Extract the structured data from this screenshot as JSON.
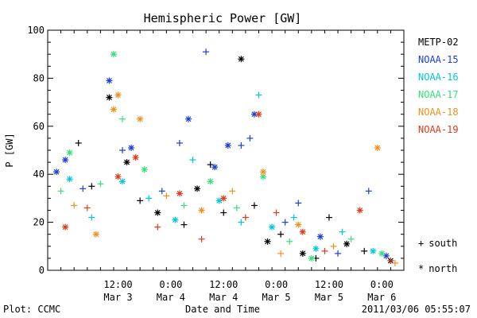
{
  "chart_data": {
    "type": "scatter",
    "title": "Hemispheric Power [GW]",
    "xlabel": "Date and Time",
    "ylabel": "P [GW]",
    "ylim": [
      0,
      100
    ],
    "xlim": [
      "2011-03-02T20:00",
      "2011-03-06T05:00"
    ],
    "yticks": [
      0,
      20,
      40,
      60,
      80,
      100
    ],
    "xticks": [
      {
        "t": "2011-03-03T12:00",
        "time": "12:00",
        "date": "Mar 3"
      },
      {
        "t": "2011-03-04T00:00",
        "time": "0:00",
        "date": "Mar 4"
      },
      {
        "t": "2011-03-04T12:00",
        "time": "12:00",
        "date": "Mar 4"
      },
      {
        "t": "2011-03-05T00:00",
        "time": "0:00",
        "date": "Mar 5"
      },
      {
        "t": "2011-03-05T12:00",
        "time": "12:00",
        "date": "Mar 5"
      },
      {
        "t": "2011-03-06T00:00",
        "time": "0:00",
        "date": "Mar 6"
      }
    ],
    "grid": false,
    "legend_position": "right",
    "marker_legend": [
      {
        "symbol": "+",
        "label": "south"
      },
      {
        "symbol": "*",
        "label": "north"
      }
    ],
    "series": [
      {
        "name": "METP-02",
        "color": "#000000",
        "points": [
          [
            "2011-03-03T03:00",
            53,
            "+"
          ],
          [
            "2011-03-03T06:00",
            35,
            "+"
          ],
          [
            "2011-03-03T10:00",
            72,
            "*"
          ],
          [
            "2011-03-03T14:00",
            45,
            "*"
          ],
          [
            "2011-03-03T17:00",
            29,
            "+"
          ],
          [
            "2011-03-03T21:00",
            24,
            "*"
          ],
          [
            "2011-03-04T03:00",
            19,
            "+"
          ],
          [
            "2011-03-04T06:00",
            34,
            "*"
          ],
          [
            "2011-03-04T09:00",
            44,
            "+"
          ],
          [
            "2011-03-04T12:00",
            24,
            "+"
          ],
          [
            "2011-03-04T16:00",
            88,
            "*"
          ],
          [
            "2011-03-04T19:00",
            27,
            "+"
          ],
          [
            "2011-03-04T22:00",
            12,
            "*"
          ],
          [
            "2011-03-05T01:00",
            15,
            "+"
          ],
          [
            "2011-03-05T06:00",
            7,
            "*"
          ],
          [
            "2011-03-05T09:00",
            5,
            "+"
          ],
          [
            "2011-03-05T12:00",
            22,
            "+"
          ],
          [
            "2011-03-05T16:00",
            11,
            "*"
          ],
          [
            "2011-03-05T20:00",
            8,
            "+"
          ],
          [
            "2011-03-06T02:00",
            4,
            "*"
          ]
        ]
      },
      {
        "name": "NOAA-15",
        "color": "#1c3fd6",
        "points": [
          [
            "2011-03-02T22:00",
            41,
            "*"
          ],
          [
            "2011-03-03T00:00",
            46,
            "*"
          ],
          [
            "2011-03-03T04:00",
            34,
            "+"
          ],
          [
            "2011-03-03T10:00",
            79,
            "*"
          ],
          [
            "2011-03-03T13:00",
            50,
            "+"
          ],
          [
            "2011-03-03T15:00",
            51,
            "*"
          ],
          [
            "2011-03-03T22:00",
            33,
            "+"
          ],
          [
            "2011-03-04T02:00",
            53,
            "+"
          ],
          [
            "2011-03-04T04:00",
            63,
            "*"
          ],
          [
            "2011-03-04T08:00",
            91,
            "+"
          ],
          [
            "2011-03-04T10:00",
            43,
            "*"
          ],
          [
            "2011-03-04T13:00",
            52,
            "*"
          ],
          [
            "2011-03-04T16:00",
            52,
            "+"
          ],
          [
            "2011-03-04T18:00",
            55,
            "+"
          ],
          [
            "2011-03-04T19:00",
            65,
            "*"
          ],
          [
            "2011-03-05T02:00",
            20,
            "+"
          ],
          [
            "2011-03-05T05:00",
            28,
            "+"
          ],
          [
            "2011-03-05T10:00",
            14,
            "*"
          ],
          [
            "2011-03-05T14:00",
            7,
            "+"
          ],
          [
            "2011-03-05T21:00",
            33,
            "+"
          ],
          [
            "2011-03-06T01:00",
            6,
            "*"
          ]
        ]
      },
      {
        "name": "NOAA-16",
        "color": "#00c8d8",
        "points": [
          [
            "2011-03-03T01:00",
            38,
            "*"
          ],
          [
            "2011-03-03T06:00",
            22,
            "+"
          ],
          [
            "2011-03-03T13:00",
            37,
            "*"
          ],
          [
            "2011-03-03T19:00",
            30,
            "+"
          ],
          [
            "2011-03-04T01:00",
            21,
            "*"
          ],
          [
            "2011-03-04T05:00",
            46,
            "+"
          ],
          [
            "2011-03-04T11:00",
            29,
            "*"
          ],
          [
            "2011-03-04T16:00",
            20,
            "+"
          ],
          [
            "2011-03-04T20:00",
            73,
            "+"
          ],
          [
            "2011-03-04T23:00",
            18,
            "*"
          ],
          [
            "2011-03-05T04:00",
            22,
            "+"
          ],
          [
            "2011-03-05T09:00",
            9,
            "*"
          ],
          [
            "2011-03-05T15:00",
            16,
            "+"
          ],
          [
            "2011-03-05T22:00",
            8,
            "*"
          ]
        ]
      },
      {
        "name": "NOAA-17",
        "color": "#35e07a",
        "points": [
          [
            "2011-03-02T23:00",
            33,
            "+"
          ],
          [
            "2011-03-03T01:00",
            49,
            "*"
          ],
          [
            "2011-03-03T08:00",
            36,
            "+"
          ],
          [
            "2011-03-03T11:00",
            90,
            "*"
          ],
          [
            "2011-03-03T13:00",
            63,
            "+"
          ],
          [
            "2011-03-03T18:00",
            42,
            "*"
          ],
          [
            "2011-03-04T03:00",
            27,
            "+"
          ],
          [
            "2011-03-04T09:00",
            37,
            "*"
          ],
          [
            "2011-03-04T15:00",
            26,
            "+"
          ],
          [
            "2011-03-04T21:00",
            39,
            "*"
          ],
          [
            "2011-03-05T03:00",
            12,
            "+"
          ],
          [
            "2011-03-05T08:00",
            5,
            "*"
          ],
          [
            "2011-03-05T17:00",
            13,
            "+"
          ],
          [
            "2011-03-06T00:00",
            7,
            "*"
          ]
        ]
      },
      {
        "name": "NOAA-18",
        "color": "#f0901c",
        "points": [
          [
            "2011-03-03T02:00",
            27,
            "+"
          ],
          [
            "2011-03-03T07:00",
            15,
            "*"
          ],
          [
            "2011-03-03T11:00",
            67,
            "*"
          ],
          [
            "2011-03-03T12:00",
            73,
            "*"
          ],
          [
            "2011-03-03T17:00",
            63,
            "*"
          ],
          [
            "2011-03-03T23:00",
            31,
            "+"
          ],
          [
            "2011-03-04T07:00",
            25,
            "*"
          ],
          [
            "2011-03-04T14:00",
            33,
            "+"
          ],
          [
            "2011-03-04T21:00",
            41,
            "*"
          ],
          [
            "2011-03-05T01:00",
            7,
            "+"
          ],
          [
            "2011-03-05T05:00",
            19,
            "*"
          ],
          [
            "2011-03-05T13:00",
            10,
            "+"
          ],
          [
            "2011-03-05T23:00",
            51,
            "*"
          ],
          [
            "2011-03-06T03:00",
            3,
            "+"
          ]
        ]
      },
      {
        "name": "NOAA-19",
        "color": "#dc3c1c",
        "points": [
          [
            "2011-03-03T00:00",
            18,
            "*"
          ],
          [
            "2011-03-03T05:00",
            26,
            "+"
          ],
          [
            "2011-03-03T12:00",
            39,
            "*"
          ],
          [
            "2011-03-03T16:00",
            47,
            "*"
          ],
          [
            "2011-03-03T21:00",
            18,
            "+"
          ],
          [
            "2011-03-04T02:00",
            32,
            "*"
          ],
          [
            "2011-03-04T07:00",
            13,
            "+"
          ],
          [
            "2011-03-04T12:00",
            30,
            "*"
          ],
          [
            "2011-03-04T17:00",
            22,
            "+"
          ],
          [
            "2011-03-04T20:00",
            65,
            "*"
          ],
          [
            "2011-03-05T00:00",
            24,
            "+"
          ],
          [
            "2011-03-05T06:00",
            16,
            "*"
          ],
          [
            "2011-03-05T11:00",
            8,
            "+"
          ],
          [
            "2011-03-05T19:00",
            25,
            "*"
          ],
          [
            "2011-03-06T02:00",
            4,
            "+"
          ]
        ]
      }
    ]
  },
  "footer": {
    "left": "Plot: CCMC",
    "right": "2011/03/06 05:55:07"
  }
}
